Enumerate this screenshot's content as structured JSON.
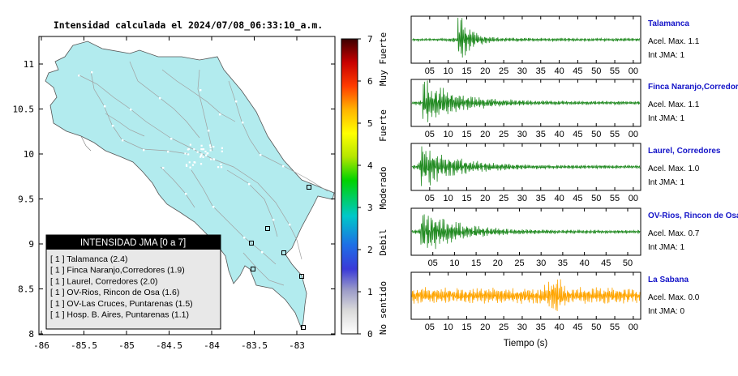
{
  "map": {
    "title": "Intensidad calculada el 2024/07/08_06:33:10_a.m.",
    "lon_ticks": [
      "-86",
      "-85.5",
      "-85",
      "-84.5",
      "-84",
      "-83.5",
      "-83"
    ],
    "lat_ticks": [
      "11",
      "10.5",
      "10",
      "9.5",
      "9",
      "8.5",
      "8"
    ],
    "land_color": "#b2ebee",
    "legend_title": "INTENSIDAD JMA [0 a 7]",
    "legend_items": [
      "[ 1 ]  Talamanca (2.4)",
      "[ 1 ]  Finca Naranjo,Corredores (1.9)",
      "[ 1 ]  Laurel, Corredores (2.0)",
      "[ 1 ]  OV-Rios, Rincon de Osa (1.6)",
      "[ 1 ]  OV-Las Cruces, Puntarenas (1.5)",
      "[ 1 ]  Hosp. B. Aires, Puntarenas (1.1)"
    ]
  },
  "colorbar": {
    "ticks": [
      "0",
      "1",
      "2",
      "3",
      "4",
      "5",
      "6",
      "7"
    ],
    "levels": [
      "No sentido",
      "Debil",
      "Moderado",
      "Fuerte",
      "Muy Fuerte"
    ]
  },
  "chart_data": [
    {
      "type": "line",
      "name": "Talamanca",
      "color": "#228b22",
      "peak_s": 13.5,
      "x_ticks": [
        "05",
        "10",
        "15",
        "20",
        "25",
        "30",
        "35",
        "40",
        "45",
        "50",
        "55",
        "00"
      ],
      "lines": [
        "Acel. Max. 1.1",
        "Int JMA: 1"
      ]
    },
    {
      "type": "line",
      "name": "Finca Naranjo,Corredores",
      "color": "#228b22",
      "peak_s": 4,
      "x_ticks": [
        "05",
        "10",
        "15",
        "20",
        "25",
        "30",
        "35",
        "40",
        "45",
        "50",
        "55",
        "00"
      ],
      "lines": [
        "Acel. Max. 1.1",
        "Int JMA: 1"
      ]
    },
    {
      "type": "line",
      "name": "Laurel, Corredores",
      "color": "#228b22",
      "peak_s": 3,
      "x_ticks": [
        "05",
        "10",
        "15",
        "20",
        "25",
        "30",
        "35",
        "40",
        "45",
        "50",
        "55",
        "00"
      ],
      "lines": [
        "Acel. Max. 1.0",
        "Int JMA: 1"
      ]
    },
    {
      "type": "line",
      "name": "OV-Rios, Rincon de Osa",
      "color": "#228b22",
      "peak_s": 3,
      "x_ticks": [
        "05",
        "10",
        "15",
        "20",
        "25",
        "30",
        "35",
        "40",
        "45",
        "50"
      ],
      "lines": [
        "Acel. Max. 0.7",
        "Int JMA: 1"
      ]
    },
    {
      "type": "line",
      "name": "La Sabana",
      "color": "#ffa500",
      "peak_s": 39,
      "x_ticks": [
        "05",
        "10",
        "15",
        "20",
        "25",
        "30",
        "35",
        "40",
        "45",
        "50",
        "55",
        "00"
      ],
      "lines": [
        "Acel. Max. 0.0",
        "Int JMA: 0"
      ]
    }
  ],
  "time_axis_label": "Tiempo (s)"
}
